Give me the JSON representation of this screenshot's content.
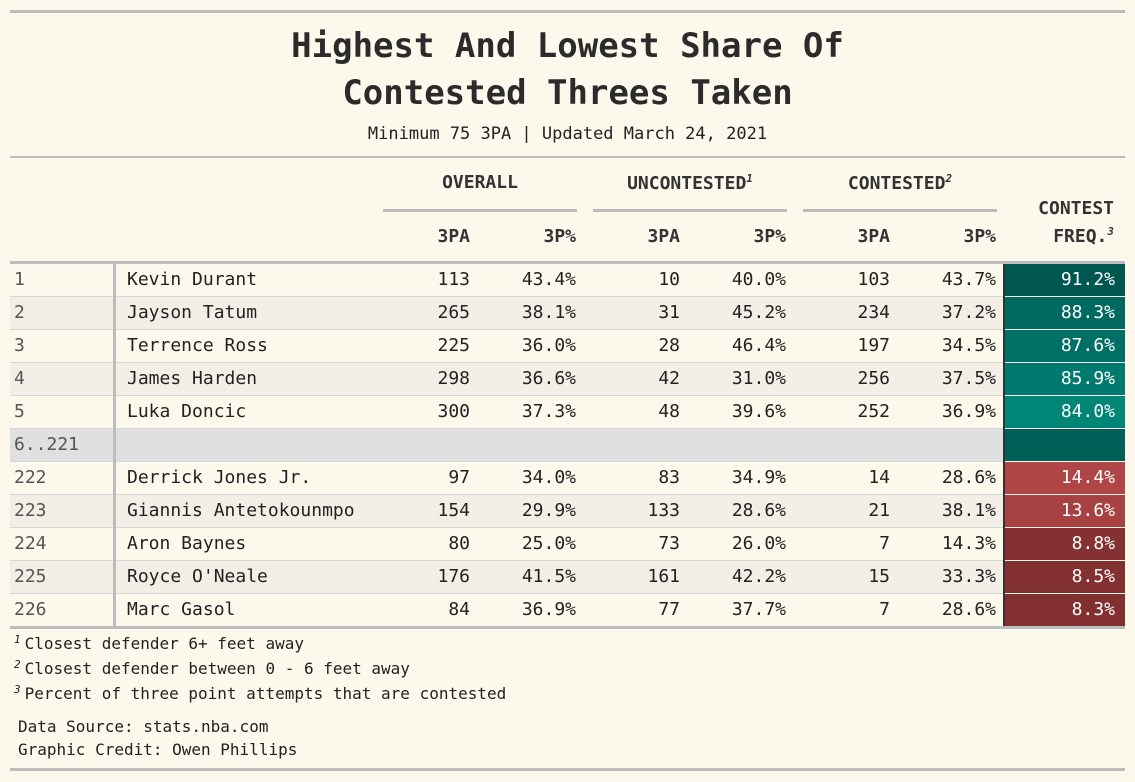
{
  "title": [
    "Highest And Lowest Share Of",
    "Contested Threes Taken"
  ],
  "subtitle": "Minimum 75 3PA | Updated March 24, 2021",
  "header": {
    "groups": [
      {
        "label": "OVERALL"
      },
      {
        "label": "UNCONTESTED",
        "note": "1"
      },
      {
        "label": "CONTESTED",
        "note": "2"
      }
    ],
    "columns": [
      "3PA",
      "3P%",
      "3PA",
      "3P%",
      "3PA",
      "3P%"
    ],
    "freq": {
      "label": [
        "CONTEST",
        "FREQ."
      ],
      "note": "3"
    }
  },
  "rows": [
    {
      "rank": "1",
      "player": "Kevin Durant",
      "cells": [
        "113",
        "43.4%",
        "10",
        "40.0%",
        "103",
        "43.7%"
      ],
      "freq": "91.2%",
      "freq_color": "#00574f"
    },
    {
      "rank": "2",
      "player": "Jayson Tatum",
      "cells": [
        "265",
        "38.1%",
        "31",
        "45.2%",
        "234",
        "37.2%"
      ],
      "freq": "88.3%",
      "freq_color": "#006a61"
    },
    {
      "rank": "3",
      "player": "Terrence Ross",
      "cells": [
        "225",
        "36.0%",
        "28",
        "46.4%",
        "197",
        "34.5%"
      ],
      "freq": "87.6%",
      "freq_color": "#007066"
    },
    {
      "rank": "4",
      "player": "James Harden",
      "cells": [
        "298",
        "36.6%",
        "42",
        "31.0%",
        "256",
        "37.5%"
      ],
      "freq": "85.9%",
      "freq_color": "#007a6e"
    },
    {
      "rank": "5",
      "player": "Luka Doncic",
      "cells": [
        "300",
        "37.3%",
        "48",
        "39.6%",
        "252",
        "36.9%"
      ],
      "freq": "84.0%",
      "freq_color": "#008577"
    },
    {
      "rank": "6..221",
      "freq_color": "#005f56"
    },
    {
      "rank": "222",
      "player": "Derrick Jones Jr.",
      "cells": [
        "97",
        "34.0%",
        "83",
        "34.9%",
        "14",
        "28.6%"
      ],
      "freq": "14.4%",
      "freq_color": "#b04545"
    },
    {
      "rank": "223",
      "player": "Giannis Antetokounmpo",
      "cells": [
        "154",
        "29.9%",
        "133",
        "28.6%",
        "21",
        "38.1%"
      ],
      "freq": "13.6%",
      "freq_color": "#a84141"
    },
    {
      "rank": "224",
      "player": "Aron Baynes",
      "cells": [
        "80",
        "25.0%",
        "73",
        "26.0%",
        "7",
        "14.3%"
      ],
      "freq": "8.8%",
      "freq_color": "#853131"
    },
    {
      "rank": "225",
      "player": "Royce O'Neale",
      "cells": [
        "176",
        "41.5%",
        "161",
        "42.2%",
        "15",
        "33.3%"
      ],
      "freq": "8.5%",
      "freq_color": "#833030"
    },
    {
      "rank": "226",
      "player": "Marc Gasol",
      "cells": [
        "84",
        "36.9%",
        "77",
        "37.7%",
        "7",
        "28.6%"
      ],
      "freq": "8.3%",
      "freq_color": "#812f2f"
    }
  ],
  "footnotes": [
    {
      "mark": "1",
      "text": "Closest defender 6+ feet away"
    },
    {
      "mark": "2",
      "text": "Closest defender between 0 - 6 feet away"
    },
    {
      "mark": "3",
      "text": "Percent of three point attempts that are contested"
    }
  ],
  "source": [
    "Data Source: stats.nba.com",
    "Graphic Credit: Owen Phillips"
  ]
}
